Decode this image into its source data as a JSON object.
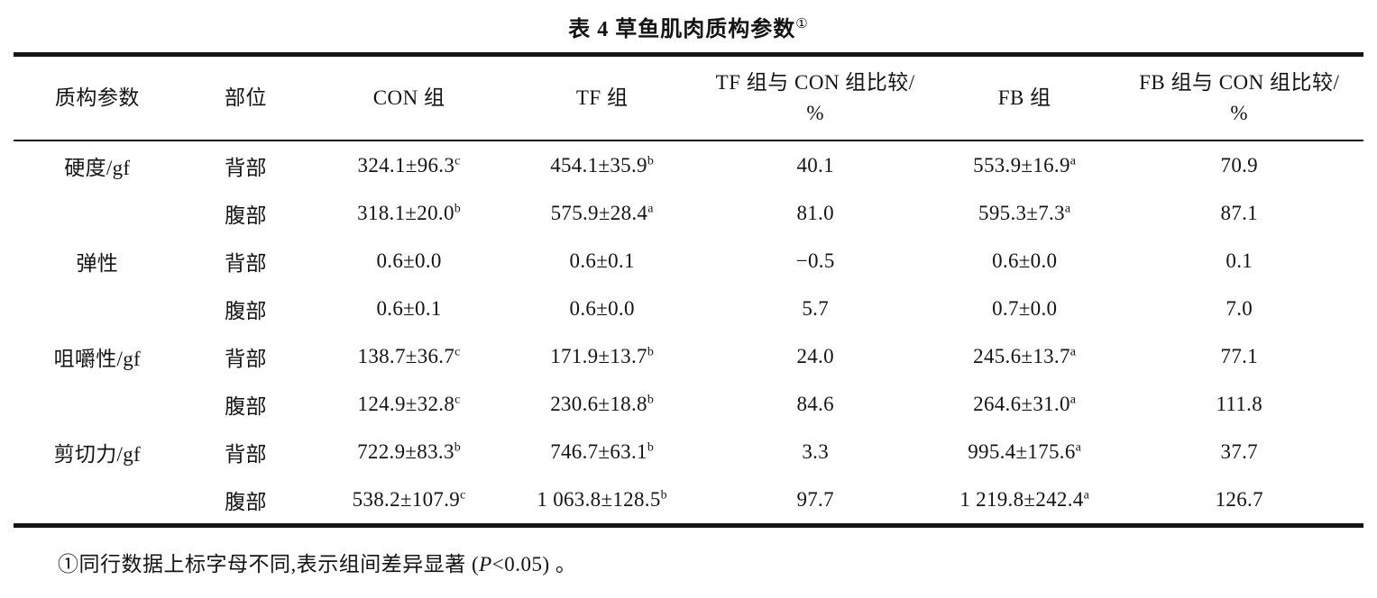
{
  "title": {
    "text": "表 4  草鱼肌肉质构参数",
    "superscript": "①"
  },
  "table": {
    "headers": [
      {
        "lines": [
          "质构参数"
        ]
      },
      {
        "lines": [
          "部位"
        ]
      },
      {
        "lines": [
          "CON 组"
        ]
      },
      {
        "lines": [
          "TF 组"
        ]
      },
      {
        "lines": [
          "TF 组与 CON 组比较/",
          "%"
        ]
      },
      {
        "lines": [
          "FB 组"
        ]
      },
      {
        "lines": [
          "FB 组与 CON 组比较/",
          "%"
        ]
      }
    ],
    "col_widths_percent": [
      12.4,
      9.6,
      14.6,
      14.0,
      17.6,
      13.4,
      18.4
    ],
    "rows": [
      {
        "cells": [
          {
            "t": "硬度/gf"
          },
          {
            "t": "背部"
          },
          {
            "t": "324.1±96.3",
            "sup": "c"
          },
          {
            "t": "454.1±35.9",
            "sup": "b"
          },
          {
            "t": "40.1"
          },
          {
            "t": "553.9±16.9",
            "sup": "a"
          },
          {
            "t": "70.9"
          }
        ]
      },
      {
        "cells": [
          {
            "t": ""
          },
          {
            "t": "腹部"
          },
          {
            "t": "318.1±20.0",
            "sup": "b"
          },
          {
            "t": "575.9±28.4",
            "sup": "a"
          },
          {
            "t": "81.0"
          },
          {
            "t": "595.3±7.3",
            "sup": "a"
          },
          {
            "t": "87.1"
          }
        ]
      },
      {
        "cells": [
          {
            "t": "弹性"
          },
          {
            "t": "背部"
          },
          {
            "t": "0.6±0.0"
          },
          {
            "t": "0.6±0.1"
          },
          {
            "t": "−0.5"
          },
          {
            "t": "0.6±0.0"
          },
          {
            "t": "0.1"
          }
        ]
      },
      {
        "cells": [
          {
            "t": ""
          },
          {
            "t": "腹部"
          },
          {
            "t": "0.6±0.1"
          },
          {
            "t": "0.6±0.0"
          },
          {
            "t": "5.7"
          },
          {
            "t": "0.7±0.0"
          },
          {
            "t": "7.0"
          }
        ]
      },
      {
        "cells": [
          {
            "t": "咀嚼性/gf"
          },
          {
            "t": "背部"
          },
          {
            "t": "138.7±36.7",
            "sup": "c"
          },
          {
            "t": "171.9±13.7",
            "sup": "b"
          },
          {
            "t": "24.0"
          },
          {
            "t": "245.6±13.7",
            "sup": "a"
          },
          {
            "t": "77.1"
          }
        ]
      },
      {
        "cells": [
          {
            "t": ""
          },
          {
            "t": "腹部"
          },
          {
            "t": "124.9±32.8",
            "sup": "c"
          },
          {
            "t": "230.6±18.8",
            "sup": "b"
          },
          {
            "t": "84.6"
          },
          {
            "t": "264.6±31.0",
            "sup": "a"
          },
          {
            "t": "111.8"
          }
        ]
      },
      {
        "cells": [
          {
            "t": "剪切力/gf"
          },
          {
            "t": "背部"
          },
          {
            "t": "722.9±83.3",
            "sup": "b"
          },
          {
            "t": "746.7±63.1",
            "sup": "b"
          },
          {
            "t": "3.3"
          },
          {
            "t": "995.4±175.6",
            "sup": "a"
          },
          {
            "t": "37.7"
          }
        ]
      },
      {
        "cells": [
          {
            "t": ""
          },
          {
            "t": "腹部"
          },
          {
            "t": "538.2±107.9",
            "sup": "c"
          },
          {
            "t": "1 063.8±128.5",
            "sup": "b"
          },
          {
            "t": "97.7"
          },
          {
            "t": "1 219.8±242.4",
            "sup": "a"
          },
          {
            "t": "126.7"
          }
        ]
      }
    ]
  },
  "footnote": {
    "before": "①同行数据上标字母不同,表示组间差异显著 (",
    "italic": "P",
    "after": "<0.05) 。"
  }
}
